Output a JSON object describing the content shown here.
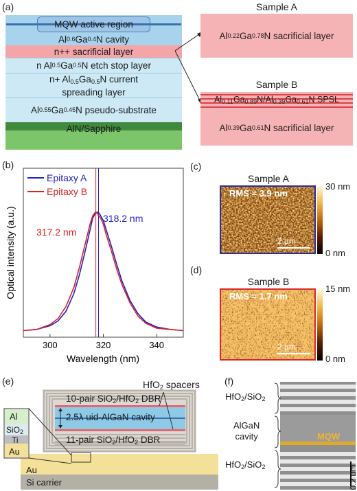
{
  "panel_labels": {
    "a": "(a)",
    "b": "(b)",
    "c": "(c)",
    "d": "(d)",
    "e": "(e)",
    "f": "(f)"
  },
  "panel_a": {
    "layers": [
      {
        "parts": [
          "MQW active region"
        ],
        "color": "#9dc6e6"
      },
      {
        "parts": [
          "Al",
          "0.6",
          "Ga",
          "0.4",
          "N cavity"
        ],
        "color": "#a8d3ec"
      },
      {
        "parts": [
          "n++ sacrificial layer"
        ],
        "color": "#f3a5a8"
      },
      {
        "parts": [
          "n Al",
          "0.5",
          "Ga",
          "0.5",
          "N etch stop layer"
        ],
        "color": "#cde9f6"
      },
      {
        "parts": [
          "n+ Al",
          "0.5",
          "Ga",
          "0.5",
          "N current",
          "",
          "spreading layer"
        ],
        "color": "#cde9f6"
      },
      {
        "parts": [
          "Al",
          "0.55",
          "Ga",
          "0.45",
          "N pseudo-substrate"
        ],
        "color": "#cde9f6"
      },
      {
        "parts": [
          "AlN/Sapphire"
        ],
        "color": "#7cc56a"
      }
    ],
    "sample_a": {
      "title": "Sample A",
      "layer": [
        "Al",
        "0.22",
        "Ga",
        "0.78",
        "N sacrificial layer"
      ]
    },
    "sample_b": {
      "title": "Sample B",
      "spsl": [
        "Al",
        "0.11",
        "Ga",
        "0.89",
        "N/Al",
        "0.39",
        "Ga",
        "0.61",
        "N SPSL"
      ],
      "layer": [
        "Al",
        "0.39",
        "Ga",
        "0.61",
        "N sacrificial layer"
      ]
    },
    "colors": {
      "sacrificial": "#f6b3b5",
      "stripe": "#d9434b"
    }
  },
  "chart_data": {
    "type": "line",
    "xlabel": "Wavelength (nm)",
    "ylabel": "Optical intensity (a.u.)",
    "xlim": [
      290,
      350
    ],
    "xticks": [
      300,
      320,
      340
    ],
    "series": [
      {
        "name": "Epitaxy A",
        "color": "#2020c8",
        "peak": 318.2,
        "peak_label": "318.2 nm",
        "x": [
          290,
          295,
          300,
          303,
          306,
          309,
          311,
          313,
          315,
          316,
          317,
          318,
          318.5,
          319,
          320,
          321,
          323,
          325,
          327,
          330,
          333,
          336,
          340,
          345,
          350
        ],
        "y": [
          0.02,
          0.03,
          0.06,
          0.1,
          0.18,
          0.33,
          0.48,
          0.66,
          0.85,
          0.95,
          0.99,
          1.0,
          0.99,
          0.97,
          0.93,
          0.86,
          0.72,
          0.57,
          0.43,
          0.27,
          0.16,
          0.09,
          0.05,
          0.03,
          0.02
        ]
      },
      {
        "name": "Epitaxy B",
        "color": "#e02020",
        "peak": 317.2,
        "peak_label": "317.2 nm",
        "x": [
          290,
          295,
          300,
          303,
          306,
          309,
          311,
          313,
          315,
          316,
          317,
          317.5,
          318,
          319,
          320,
          321,
          323,
          325,
          327,
          330,
          333,
          336,
          340,
          345,
          350
        ],
        "y": [
          0.02,
          0.03,
          0.07,
          0.12,
          0.22,
          0.38,
          0.54,
          0.72,
          0.9,
          0.97,
          1.0,
          1.0,
          0.98,
          0.95,
          0.9,
          0.82,
          0.68,
          0.53,
          0.4,
          0.25,
          0.14,
          0.08,
          0.04,
          0.03,
          0.02
        ]
      }
    ]
  },
  "afm": [
    {
      "title": "Sample A",
      "rms": "RMS = 3.9 nm",
      "scale": "2 μm",
      "cb_max": "30 nm",
      "cb_min": "0 nm",
      "frame": "#2c2c9a"
    },
    {
      "title": "Sample B",
      "rms": "RMS = 1.7 nm",
      "scale": "2 μm",
      "cb_max": "15 nm",
      "cb_min": "0 nm",
      "frame": "#d9262a"
    }
  ],
  "panel_e": {
    "hfo2": [
      "HfO",
      "2",
      " spacers"
    ],
    "top_dbr": [
      "10-pair SiO",
      "2",
      "/HfO",
      "2",
      " DBR"
    ],
    "cavity": "2.5λ uid-AlGaN cavity",
    "bottom_dbr": [
      "11-pair SiO",
      "2",
      "/HfO",
      "2",
      " DBR"
    ],
    "inset": {
      "al": "Al",
      "sio2": [
        "SiO",
        "2"
      ],
      "ti": "Ti",
      "au": "Au"
    },
    "au": "Au",
    "si": "Si carrier"
  },
  "panel_f": {
    "top": [
      "HfO",
      "2",
      "/SiO",
      "2"
    ],
    "mid": [
      "AlGaN",
      "cavity"
    ],
    "bot": [
      "HfO",
      "2",
      "/SiO",
      "2"
    ],
    "mqw": "MQW",
    "scale": "0.2 μm"
  }
}
